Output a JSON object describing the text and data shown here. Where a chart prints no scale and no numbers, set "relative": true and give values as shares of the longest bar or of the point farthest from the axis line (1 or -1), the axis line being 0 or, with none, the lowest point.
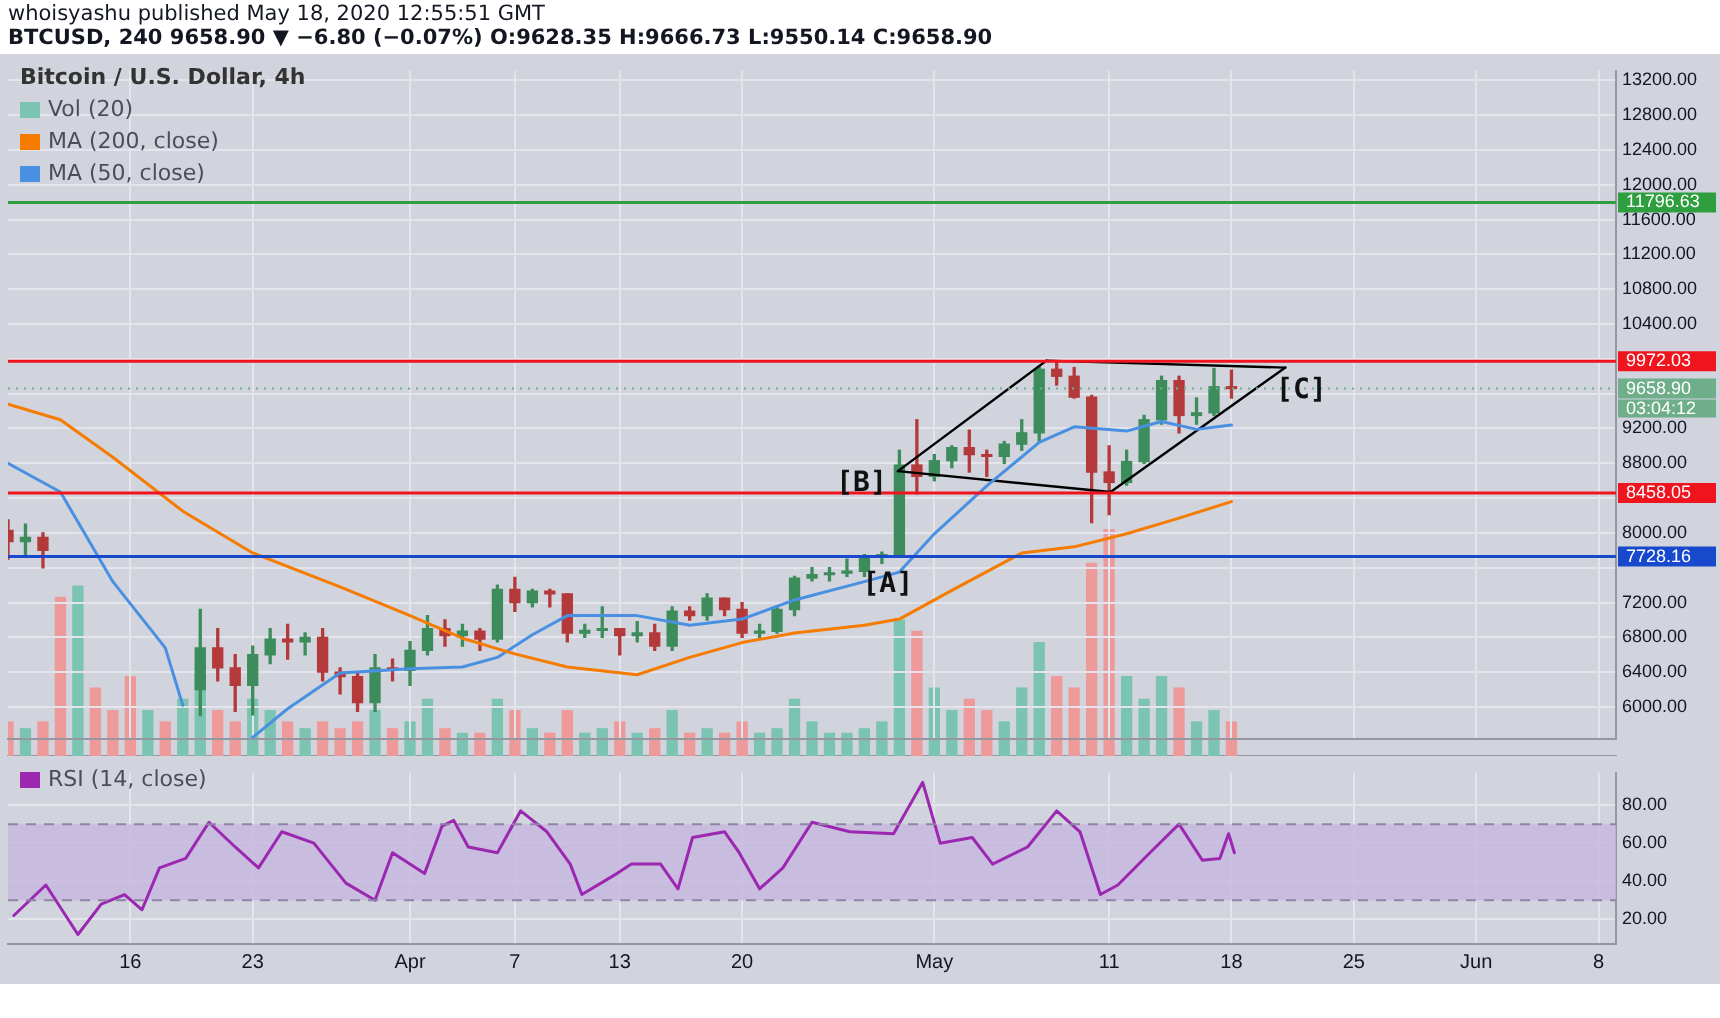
{
  "chart_data": [
    {
      "type": "candlestick",
      "title": "Bitcoin / U.S. Dollar, 4h",
      "legend": "top left",
      "grid": true,
      "tick_labels": "y",
      "xlim": [
        "2020-03-09",
        "2020-06-09"
      ],
      "ylim": [
        5630,
        13310
      ],
      "xticks": [
        {
          "value": "2020-03-16",
          "label": null
        },
        {
          "value": "2020-03-23",
          "label": null
        },
        {
          "value": "2020-04-01",
          "label": null
        },
        {
          "value": "2020-04-07",
          "label": null
        },
        {
          "value": "2020-04-13",
          "label": null
        },
        {
          "value": "2020-04-20",
          "label": null
        },
        {
          "value": "2020-05-01",
          "label": null
        },
        {
          "value": "2020-05-11",
          "label": null
        },
        {
          "value": "2020-05-18",
          "label": null
        },
        {
          "value": "2020-05-25",
          "label": null
        },
        {
          "value": "2020-06-01",
          "label": null
        },
        {
          "value": "2020-06-08",
          "label": null
        }
      ],
      "yticks": [
        {
          "value": 6000,
          "label": "6000.00"
        },
        {
          "value": 6400,
          "label": "6400.00"
        },
        {
          "value": 6800,
          "label": "6800.00"
        },
        {
          "value": 7200,
          "label": "7200.00"
        },
        {
          "value": 7600,
          "label": null
        },
        {
          "value": 8000,
          "label": "8000.00"
        },
        {
          "value": 8400,
          "label": null
        },
        {
          "value": 8800,
          "label": "8800.00"
        },
        {
          "value": 9200,
          "label": "9200.00"
        },
        {
          "value": 9600,
          "label": null
        },
        {
          "value": 10000,
          "label": null
        },
        {
          "value": 10400,
          "label": "10400.00"
        },
        {
          "value": 10800,
          "label": "10800.00"
        },
        {
          "value": 11200,
          "label": "11200.00"
        },
        {
          "value": 11600,
          "label": "11600.00"
        },
        {
          "value": 12000,
          "label": "12000.00"
        },
        {
          "value": 12400,
          "label": "12400.00"
        },
        {
          "value": 12800,
          "label": "12800.00"
        },
        {
          "value": 13200,
          "label": "13200.00"
        }
      ],
      "series": [
        {
          "x": [
            "2020-03-09",
            "2020-03-10",
            "2020-03-11",
            "2020-03-20",
            "2020-03-21",
            "2020-03-22",
            "2020-03-23",
            "2020-03-24",
            "2020-03-25",
            "2020-03-26",
            "2020-03-27",
            "2020-03-28",
            "2020-03-29",
            "2020-03-30",
            "2020-03-31",
            "2020-04-01",
            "2020-04-02",
            "2020-04-03",
            "2020-04-04",
            "2020-04-05",
            "2020-04-06",
            "2020-04-07",
            "2020-04-08",
            "2020-04-09",
            "2020-04-10",
            "2020-04-11",
            "2020-04-12",
            "2020-04-13",
            "2020-04-14",
            "2020-04-15",
            "2020-04-16",
            "2020-04-17",
            "2020-04-18",
            "2020-04-19",
            "2020-04-20",
            "2020-04-21",
            "2020-04-22",
            "2020-04-23",
            "2020-04-24",
            "2020-04-25",
            "2020-04-26",
            "2020-04-27",
            "2020-04-28",
            "2020-04-29",
            "2020-04-30",
            "2020-05-01",
            "2020-05-02",
            "2020-05-03",
            "2020-05-04",
            "2020-05-05",
            "2020-05-06",
            "2020-05-07",
            "2020-05-08",
            "2020-05-09",
            "2020-05-10",
            "2020-05-11",
            "2020-05-12",
            "2020-05-13",
            "2020-05-14",
            "2020-05-15",
            "2020-05-16",
            "2020-05-17",
            "2020-05-18"
          ],
          "ohlc": [
            [
              8030,
              8150,
              7700,
              7900
            ],
            [
              7900,
              8100,
              7750,
              7950
            ],
            [
              7950,
              8000,
              7600,
              7800
            ],
            [
              6200,
              7120,
              5900,
              6680
            ],
            [
              6680,
              6900,
              6300,
              6450
            ],
            [
              6450,
              6600,
              5950,
              6250
            ],
            [
              6250,
              6700,
              5910,
              6600
            ],
            [
              6600,
              6900,
              6500,
              6780
            ],
            [
              6780,
              6950,
              6550,
              6750
            ],
            [
              6750,
              6850,
              6600,
              6800
            ],
            [
              6800,
              6900,
              6300,
              6400
            ],
            [
              6400,
              6450,
              6150,
              6350
            ],
            [
              6350,
              6400,
              5950,
              6050
            ],
            [
              6050,
              6600,
              5950,
              6450
            ],
            [
              6450,
              6550,
              6300,
              6420
            ],
            [
              6420,
              6750,
              6250,
              6650
            ],
            [
              6650,
              7050,
              6600,
              6900
            ],
            [
              6900,
              7000,
              6700,
              6820
            ],
            [
              6820,
              6950,
              6700,
              6870
            ],
            [
              6870,
              6900,
              6650,
              6780
            ],
            [
              6780,
              7400,
              6750,
              7350
            ],
            [
              7350,
              7490,
              7100,
              7200
            ],
            [
              7200,
              7350,
              7150,
              7330
            ],
            [
              7330,
              7350,
              7150,
              7300
            ],
            [
              7300,
              7300,
              6750,
              6850
            ],
            [
              6850,
              6950,
              6800,
              6880
            ],
            [
              6880,
              7150,
              6800,
              6900
            ],
            [
              6900,
              6900,
              6600,
              6820
            ],
            [
              6820,
              6980,
              6750,
              6850
            ],
            [
              6850,
              6950,
              6650,
              6700
            ],
            [
              6700,
              7150,
              6650,
              7100
            ],
            [
              7100,
              7150,
              7000,
              7050
            ],
            [
              7050,
              7300,
              7000,
              7250
            ],
            [
              7250,
              7250,
              7050,
              7120
            ],
            [
              7120,
              7200,
              6800,
              6850
            ],
            [
              6850,
              6950,
              6800,
              6870
            ],
            [
              6870,
              7150,
              6850,
              7120
            ],
            [
              7120,
              7500,
              7050,
              7480
            ],
            [
              7480,
              7600,
              7450,
              7520
            ],
            [
              7520,
              7600,
              7450,
              7540
            ],
            [
              7540,
              7700,
              7500,
              7560
            ],
            [
              7560,
              7750,
              7500,
              7720
            ],
            [
              7720,
              7780,
              7650,
              7750
            ],
            [
              7750,
              8950,
              7720,
              8780
            ],
            [
              8780,
              9300,
              8450,
              8650
            ],
            [
              8650,
              8900,
              8600,
              8830
            ],
            [
              8830,
              9000,
              8750,
              8980
            ],
            [
              8980,
              9180,
              8700,
              8900
            ],
            [
              8900,
              8950,
              8650,
              8880
            ],
            [
              8880,
              9050,
              8800,
              9020
            ],
            [
              9020,
              9300,
              8950,
              9150
            ],
            [
              9150,
              9920,
              9050,
              9880
            ],
            [
              9880,
              9972,
              9700,
              9800
            ],
            [
              9800,
              9900,
              9550,
              9560
            ],
            [
              9560,
              9580,
              8120,
              8700
            ],
            [
              8700,
              9000,
              8210,
              8580
            ],
            [
              8580,
              8950,
              8550,
              8820
            ],
            [
              8820,
              9350,
              8800,
              9300
            ],
            [
              9300,
              9800,
              9250,
              9750
            ],
            [
              9750,
              9800,
              9150,
              9350
            ],
            [
              9350,
              9550,
              9250,
              9380
            ],
            [
              9380,
              9890,
              9350,
              9680
            ],
            [
              9680,
              9870,
              9550,
              9658.9
            ]
          ],
          "colors": [
            "#b3393b",
            "#3d8c5c",
            "#b3393b",
            "#3d8c5c",
            "#b3393b",
            "#b3393b",
            "#3d8c5c",
            "#3d8c5c",
            "#b3393b",
            "#3d8c5c",
            "#b3393b",
            "#b3393b",
            "#b3393b",
            "#3d8c5c",
            "#b3393b",
            "#3d8c5c",
            "#3d8c5c",
            "#b3393b",
            "#3d8c5c",
            "#b3393b",
            "#3d8c5c",
            "#b3393b",
            "#3d8c5c",
            "#b3393b",
            "#b3393b",
            "#3d8c5c",
            "#3d8c5c",
            "#b3393b",
            "#3d8c5c",
            "#b3393b",
            "#3d8c5c",
            "#b3393b",
            "#3d8c5c",
            "#b3393b",
            "#b3393b",
            "#3d8c5c",
            "#3d8c5c",
            "#3d8c5c",
            "#3d8c5c",
            "#3d8c5c",
            "#3d8c5c",
            "#3d8c5c",
            "#3d8c5c",
            "#3d8c5c",
            "#b3393b",
            "#3d8c5c",
            "#3d8c5c",
            "#b3393b",
            "#b3393b",
            "#3d8c5c",
            "#3d8c5c",
            "#3d8c5c",
            "#b3393b",
            "#b3393b",
            "#b3393b",
            "#b3393b",
            "#3d8c5c",
            "#3d8c5c",
            "#3d8c5c",
            "#b3393b",
            "#3d8c5c",
            "#3d8c5c",
            "#b3393b"
          ]
        },
        {
          "type": "line",
          "name": "MA (200, close)",
          "color": "#f57c00",
          "x": [
            "2020-03-09",
            "2020-03-12",
            "2020-03-15",
            "2020-03-19",
            "2020-03-23",
            "2020-03-28",
            "2020-04-01",
            "2020-04-04",
            "2020-04-07",
            "2020-04-10",
            "2020-04-14",
            "2020-04-17",
            "2020-04-20",
            "2020-04-23",
            "2020-04-27",
            "2020-04-29",
            "2020-05-02",
            "2020-05-06",
            "2020-05-09",
            "2020-05-12",
            "2020-05-15",
            "2020-05-18"
          ],
          "values": [
            9480,
            9300,
            8870,
            8250,
            7770,
            7380,
            7050,
            6790,
            6610,
            6460,
            6370,
            6570,
            6740,
            6850,
            6940,
            7010,
            7340,
            7770,
            7840,
            7990,
            8170,
            8360
          ]
        },
        {
          "type": "line",
          "name": "MA (50, close)",
          "color": "#4a90e2",
          "x": [
            "2020-03-09",
            "2020-03-12",
            "2020-03-15",
            "2020-03-18",
            "2020-03-19",
            "2020-03-21",
            "2020-03-23",
            "2020-03-25",
            "2020-03-28",
            "2020-04-01",
            "2020-04-04",
            "2020-04-06",
            "2020-04-08",
            "2020-04-10",
            "2020-04-14",
            "2020-04-17",
            "2020-04-20",
            "2020-04-23",
            "2020-04-27",
            "2020-04-29",
            "2020-05-01",
            "2020-05-04",
            "2020-05-07",
            "2020-05-09",
            "2020-05-12",
            "2020-05-14",
            "2020-05-16",
            "2020-05-18"
          ],
          "values": [
            8800,
            8470,
            7440,
            6680,
            6020,
            null,
            5650,
            5980,
            6390,
            6440,
            6460,
            6570,
            6830,
            7050,
            7050,
            6940,
            7010,
            7230,
            7440,
            7550,
            7990,
            8540,
            9040,
            9220,
            9170,
            9280,
            9190,
            9240
          ]
        },
        {
          "type": "line",
          "color": "#000000",
          "x": [
            "2020-04-28T22:00",
            "2020-05-07T10:00"
          ],
          "values": [
            8710,
            9980
          ]
        },
        {
          "type": "line",
          "color": "#000000",
          "x": [
            "2020-05-07T10:00",
            "2020-05-21T02:00"
          ],
          "values": [
            9980,
            9900
          ]
        },
        {
          "type": "line",
          "color": "#000000",
          "x": [
            "2020-05-11T02:00",
            "2020-05-21T02:00"
          ],
          "values": [
            8470,
            9900
          ]
        },
        {
          "type": "line",
          "color": "#000000",
          "x": [
            "2020-04-28T22:00",
            "2020-05-11T02:00"
          ],
          "values": [
            8710,
            8470
          ]
        }
      ],
      "ref_lines": [
        {
          "axis": "y",
          "value": 11796.63,
          "label": "11796.63",
          "color": "#2e9e3e"
        },
        {
          "axis": "y",
          "value": 9972.03,
          "label": "9972.03",
          "color": "#f0141e"
        },
        {
          "axis": "y",
          "value": 8458.05,
          "label": "8458.05",
          "color": "#f0141e"
        },
        {
          "axis": "y",
          "value": 7728.16,
          "label": "7728.16",
          "color": "#1848cc"
        },
        {
          "axis": "y",
          "value": 9658.9,
          "label": "9658.90",
          "color": "#6fae8a",
          "line_style": "dotted"
        }
      ],
      "annotations": [
        "whoisyashu published May 18, 2020 12:55:51 GMT",
        "BTCUSD, 240 9658.90 ▼ −6.80 (−0.07%) O:9628.35 H:9666.73 L:9550.14 C:9658.90",
        "03:04:12",
        {
          "text": "[A]",
          "x": "2020-04-28T08:00",
          "y": 7400
        },
        {
          "text": "[B]",
          "x": "2020-04-26T20:00",
          "y": 8560
        },
        {
          "text": "[C]",
          "x": "2020-05-22T00:00",
          "y": 9630
        }
      ]
    },
    {
      "type": "bar",
      "relative": true,
      "tick_labels": false,
      "legend": "top left",
      "xlim": [
        "2020-03-09",
        "2020-06-09"
      ],
      "series": [
        {
          "name": "Vol (20)",
          "x": [
            "2020-03-09",
            "2020-03-10",
            "2020-03-11",
            "2020-03-12",
            "2020-03-13",
            "2020-03-14",
            "2020-03-15",
            "2020-03-16",
            "2020-03-17",
            "2020-03-18",
            "2020-03-19",
            "2020-03-20",
            "2020-03-21",
            "2020-03-22",
            "2020-03-23",
            "2020-03-24",
            "2020-03-25",
            "2020-03-26",
            "2020-03-27",
            "2020-03-28",
            "2020-03-29",
            "2020-03-30",
            "2020-03-31",
            "2020-04-01",
            "2020-04-02",
            "2020-04-03",
            "2020-04-04",
            "2020-04-05",
            "2020-04-06",
            "2020-04-07",
            "2020-04-08",
            "2020-04-09",
            "2020-04-10",
            "2020-04-11",
            "2020-04-12",
            "2020-04-13",
            "2020-04-14",
            "2020-04-15",
            "2020-04-16",
            "2020-04-17",
            "2020-04-18",
            "2020-04-19",
            "2020-04-20",
            "2020-04-21",
            "2020-04-22",
            "2020-04-23",
            "2020-04-24",
            "2020-04-25",
            "2020-04-26",
            "2020-04-27",
            "2020-04-28",
            "2020-04-29",
            "2020-04-30",
            "2020-05-01",
            "2020-05-02",
            "2020-05-03",
            "2020-05-04",
            "2020-05-05",
            "2020-05-06",
            "2020-05-07",
            "2020-05-08",
            "2020-05-09",
            "2020-05-10",
            "2020-05-11",
            "2020-05-12",
            "2020-05-13",
            "2020-05-14",
            "2020-05-15",
            "2020-05-16",
            "2020-05-17",
            "2020-05-18"
          ],
          "values": [
            0.15,
            0.12,
            0.15,
            0.7,
            0.75,
            0.3,
            0.2,
            0.35,
            0.2,
            0.15,
            0.25,
            0.4,
            0.2,
            0.15,
            0.25,
            0.2,
            0.15,
            0.12,
            0.15,
            0.12,
            0.15,
            0.2,
            0.12,
            0.15,
            0.25,
            0.12,
            0.1,
            0.1,
            0.25,
            0.2,
            0.12,
            0.1,
            0.2,
            0.1,
            0.12,
            0.15,
            0.1,
            0.12,
            0.2,
            0.1,
            0.12,
            0.1,
            0.15,
            0.1,
            0.12,
            0.25,
            0.15,
            0.1,
            0.1,
            0.12,
            0.15,
            0.6,
            0.55,
            0.3,
            0.2,
            0.25,
            0.2,
            0.15,
            0.3,
            0.5,
            0.35,
            0.3,
            0.85,
            1,
            0.35,
            0.25,
            0.35,
            0.3,
            0.15,
            0.2,
            0.15
          ],
          "colors": [
            "#ee9a9a",
            "#7cc4b2",
            "#ee9a9a",
            "#ee9a9a",
            "#7cc4b2",
            "#ee9a9a",
            "#ee9a9a",
            "#ee9a9a",
            "#7cc4b2",
            "#ee9a9a",
            "#7cc4b2",
            "#7cc4b2",
            "#ee9a9a",
            "#ee9a9a",
            "#7cc4b2",
            "#7cc4b2",
            "#ee9a9a",
            "#7cc4b2",
            "#ee9a9a",
            "#ee9a9a",
            "#ee9a9a",
            "#7cc4b2",
            "#ee9a9a",
            "#7cc4b2",
            "#7cc4b2",
            "#ee9a9a",
            "#7cc4b2",
            "#ee9a9a",
            "#7cc4b2",
            "#ee9a9a",
            "#7cc4b2",
            "#ee9a9a",
            "#ee9a9a",
            "#7cc4b2",
            "#7cc4b2",
            "#ee9a9a",
            "#7cc4b2",
            "#ee9a9a",
            "#7cc4b2",
            "#ee9a9a",
            "#7cc4b2",
            "#ee9a9a",
            "#ee9a9a",
            "#7cc4b2",
            "#7cc4b2",
            "#7cc4b2",
            "#7cc4b2",
            "#7cc4b2",
            "#7cc4b2",
            "#7cc4b2",
            "#7cc4b2",
            "#7cc4b2",
            "#ee9a9a",
            "#7cc4b2",
            "#7cc4b2",
            "#ee9a9a",
            "#ee9a9a",
            "#7cc4b2",
            "#7cc4b2",
            "#7cc4b2",
            "#ee9a9a",
            "#ee9a9a",
            "#ee9a9a",
            "#ee9a9a",
            "#7cc4b2",
            "#7cc4b2",
            "#7cc4b2",
            "#ee9a9a",
            "#7cc4b2",
            "#7cc4b2",
            "#ee9a9a"
          ]
        }
      ]
    },
    {
      "type": "line",
      "legend": "top left",
      "grid": true,
      "xlim": [
        "2020-03-09",
        "2020-06-09"
      ],
      "ylim": [
        7,
        97
      ],
      "xticks": [
        {
          "value": "2020-03-16",
          "label": "16"
        },
        {
          "value": "2020-03-23",
          "label": "23"
        },
        {
          "value": "2020-04-01",
          "label": "Apr"
        },
        {
          "value": "2020-04-07",
          "label": "7"
        },
        {
          "value": "2020-04-13",
          "label": "13"
        },
        {
          "value": "2020-04-20",
          "label": "20"
        },
        {
          "value": "2020-05-01",
          "label": "May"
        },
        {
          "value": "2020-05-11",
          "label": "11"
        },
        {
          "value": "2020-05-18",
          "label": "18"
        },
        {
          "value": "2020-05-25",
          "label": "25"
        },
        {
          "value": "2020-06-01",
          "label": "Jun"
        },
        {
          "value": "2020-06-08",
          "label": "8"
        }
      ],
      "yticks": [
        {
          "value": 20,
          "label": "20.00"
        },
        {
          "value": 40,
          "label": "40.00"
        },
        {
          "value": 60,
          "label": "60.00"
        },
        {
          "value": 80,
          "label": "80.00"
        }
      ],
      "bands": [
        {
          "axis": "y",
          "from": 30,
          "to": 70,
          "color": "#c6b5e0"
        }
      ],
      "ref_lines": [
        {
          "axis": "y",
          "value": 30,
          "color": "#8f84a8",
          "line_style": "dashed"
        },
        {
          "axis": "y",
          "value": 70,
          "color": "#8f84a8",
          "line_style": "dashed"
        }
      ],
      "series": [
        {
          "name": "RSI (14, close)",
          "color": "#9c27b0",
          "x": [
            "2020-03-09T08:00",
            "2020-03-11T04:00",
            "2020-03-13T00:00",
            "2020-03-14T08:00",
            "2020-03-15T16:00",
            "2020-03-16T16:00",
            "2020-03-17T16:00",
            "2020-03-19T04:00",
            "2020-03-20T12:00",
            "2020-03-22T00:00",
            "2020-03-23T08:00",
            "2020-03-24T16:00",
            "2020-03-26T12:00",
            "2020-03-28T08:00",
            "2020-03-30T00:00",
            "2020-03-31T00:00",
            "2020-04-01T20:00",
            "2020-04-02T20:00",
            "2020-04-03T12:00",
            "2020-04-04T08:00",
            "2020-04-06T00:00",
            "2020-04-07T08:00",
            "2020-04-08T20:00",
            "2020-04-10T04:00",
            "2020-04-10T20:00",
            "2020-04-12T20:00",
            "2020-04-13T16:00",
            "2020-04-15T08:00",
            "2020-04-16T08:00",
            "2020-04-17T04:00",
            "2020-04-19T00:00",
            "2020-04-19T20:00",
            "2020-04-21T00:00",
            "2020-04-22T08:00",
            "2020-04-24T00:00",
            "2020-04-26T04:00",
            "2020-04-28T16:00",
            "2020-04-30T08:00",
            "2020-05-01T08:00",
            "2020-05-03T04:00",
            "2020-05-04T08:00",
            "2020-05-06T08:00",
            "2020-05-08T00:00",
            "2020-05-09T08:00",
            "2020-05-10T12:00",
            "2020-05-11T12:00",
            "2020-05-13T08:00",
            "2020-05-15T00:00",
            "2020-05-16T08:00",
            "2020-05-17T08:00",
            "2020-05-17T20:00",
            "2020-05-18T04:00"
          ],
          "values": [
            22,
            38,
            12,
            28,
            33,
            25,
            47,
            52,
            71,
            58,
            47,
            66,
            60,
            39,
            30,
            55,
            44,
            69,
            72,
            58,
            55,
            77,
            66,
            49,
            33,
            44,
            49,
            49,
            36,
            63,
            66,
            55,
            36,
            47,
            71,
            66,
            65,
            92,
            60,
            63,
            49,
            58,
            77,
            66,
            33,
            38,
            55,
            70,
            51,
            52,
            65,
            55
          ]
        }
      ]
    }
  ]
}
